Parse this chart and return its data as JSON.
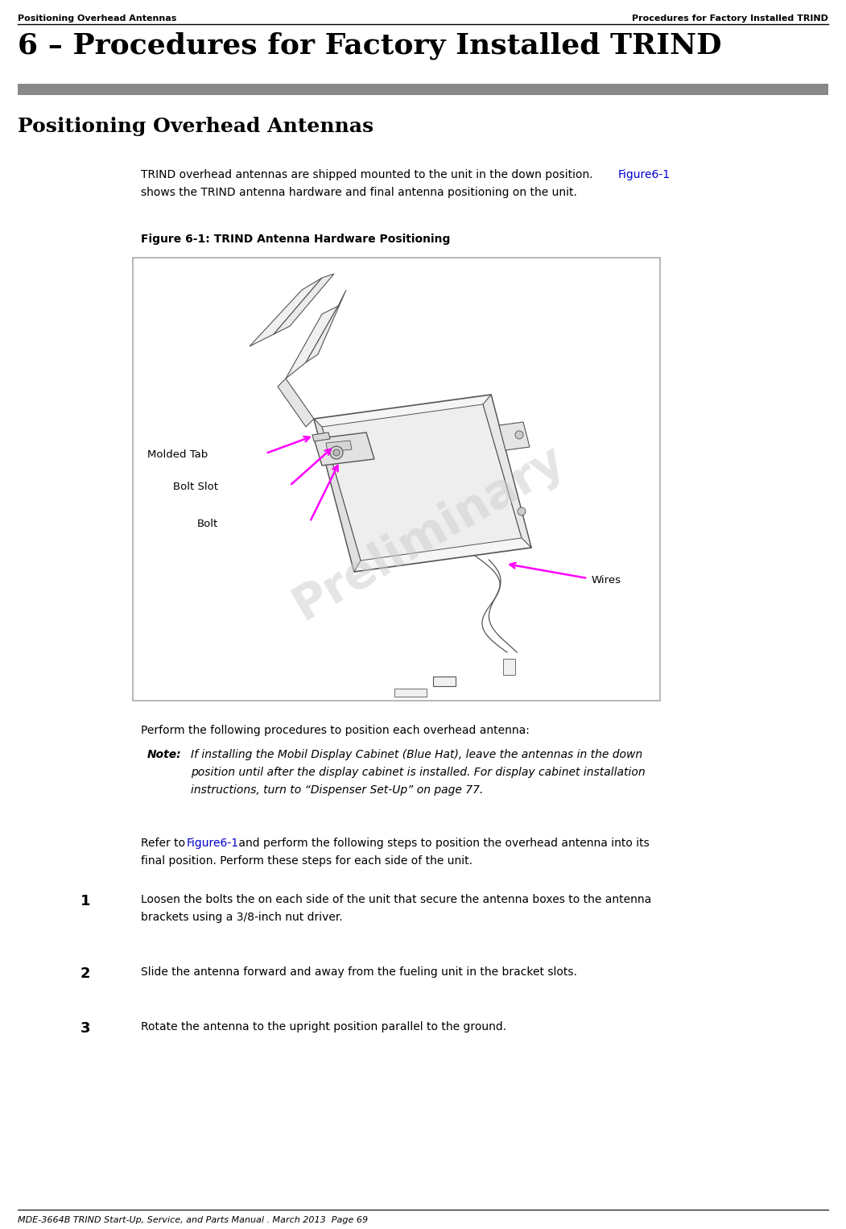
{
  "page_bg": "#ffffff",
  "header_left": "Positioning Overhead Antennas",
  "header_right": "Procedures for Factory Installed TRIND",
  "chapter_title": "6 – Procedures for Factory Installed TRIND",
  "section_title": "Positioning Overhead Antennas",
  "figure_caption": "Figure 6-1: TRIND Antenna Hardware Positioning",
  "label_molded_tab": "Molded Tab",
  "label_bolt_slot": "Bolt Slot",
  "label_bolt": "Bolt",
  "label_wires": "Wires",
  "arrow_color": "#ff00ff",
  "prelim_text": "Preliminary",
  "para2_text": "Perform the following procedures to position each overhead antenna:",
  "note_label": "Note:",
  "note_text": "  If installing the Mobil Display Cabinet (Blue Hat), leave the antennas in the down\n        position until after the display cabinet is installed. For display cabinet installation\n        instructions, turn to “Dispenser Set-Up” on page 77.",
  "step1_text": "Loosen the bolts the on each side of the unit that secure the antenna boxes to the antenna\n        brackets using a 3/8-inch nut driver.",
  "step2_text": "Slide the antenna forward and away from the fueling unit in the bracket slots.",
  "step3_text": "Rotate the antenna to the upright position parallel to the ground.",
  "footer_text": "MDE-3664B TRIND Start-Up, Service, and Parts Manual . March 2013  Page 69",
  "link_color": "#0000cc",
  "text_color": "#000000",
  "header_bar_color": "#888888",
  "draw_line_color": "#555555"
}
